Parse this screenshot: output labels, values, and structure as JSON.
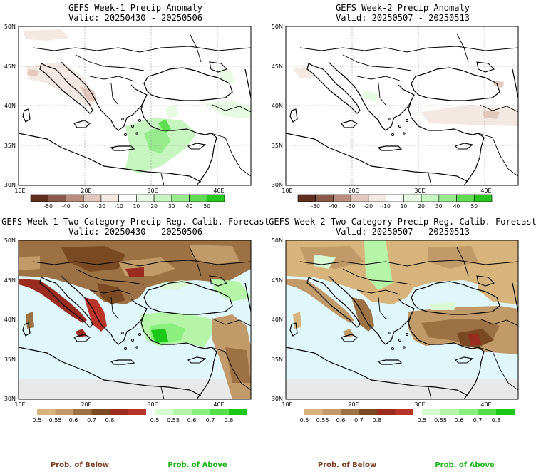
{
  "colors": {
    "sea": "#dff7fb",
    "nodata": "#e8e8e8",
    "below_text": "#7a3b1e",
    "above_text": "#19b414",
    "anom_scale": [
      "#5e2e1e",
      "#8a5a48",
      "#b88e7e",
      "#e2c8bc",
      "#f4e8e2",
      "#ffffff",
      "#e6fbe2",
      "#c6f5bf",
      "#97eb8c",
      "#5fdc52",
      "#27c61c"
    ],
    "below_scale": [
      "#d7b47c",
      "#c09a68",
      "#9c7144",
      "#7b4a22",
      "#9a2b1f",
      "#b83428"
    ],
    "above_scale": [
      "#d9fbd4",
      "#b6f5a8",
      "#8aef7d",
      "#54e046",
      "#1ec818"
    ]
  },
  "panels": [
    {
      "id": "w1-anom",
      "title_line1": "GEFS Week-1 Precip Anomaly",
      "title_line2": "Valid: 20250430 - 20250506",
      "kind": "anomaly"
    },
    {
      "id": "w2-anom",
      "title_line1": "GEFS Week-2 Precip Anomaly",
      "title_line2": "Valid: 20250507 - 20250513",
      "kind": "anomaly"
    },
    {
      "id": "w1-prob",
      "title_line1": "GEFS Week-1 Two-Category Precip Reg. Calib. Forecast",
      "title_line2": "Valid: 20250430 - 20250506",
      "kind": "probability"
    },
    {
      "id": "w2-prob",
      "title_line1": "GEFS Week-2 Two-Category Precip Reg. Calib. Forecast",
      "title_line2": "Valid: 20250507 - 20250513",
      "kind": "probability"
    }
  ],
  "axes": {
    "lat_labels": [
      "50N",
      "45N",
      "40N",
      "35N",
      "30N"
    ],
    "lon_labels": [
      "10E",
      "20E",
      "30E",
      "40E"
    ],
    "lat_values": [
      50,
      45,
      40,
      35,
      30
    ],
    "lon_values": [
      10,
      20,
      30,
      40
    ],
    "lon_range": [
      10,
      45
    ],
    "lat_range": [
      30,
      50
    ]
  },
  "anomaly_colorbar": {
    "labels": [
      "-50",
      "-40",
      "-30",
      "-20",
      "-10",
      "10",
      "20",
      "30",
      "40",
      "50"
    ]
  },
  "below_colorbar": {
    "labels": [
      "0.5",
      "0.55",
      "0.6",
      "0.7",
      "0.8"
    ]
  },
  "above_colorbar": {
    "labels": [
      "0.5",
      "0.55",
      "0.6",
      "0.7",
      "0.8"
    ]
  },
  "footer": {
    "below_label": "Prob. of Below",
    "above_label": "Prob. of Above"
  }
}
